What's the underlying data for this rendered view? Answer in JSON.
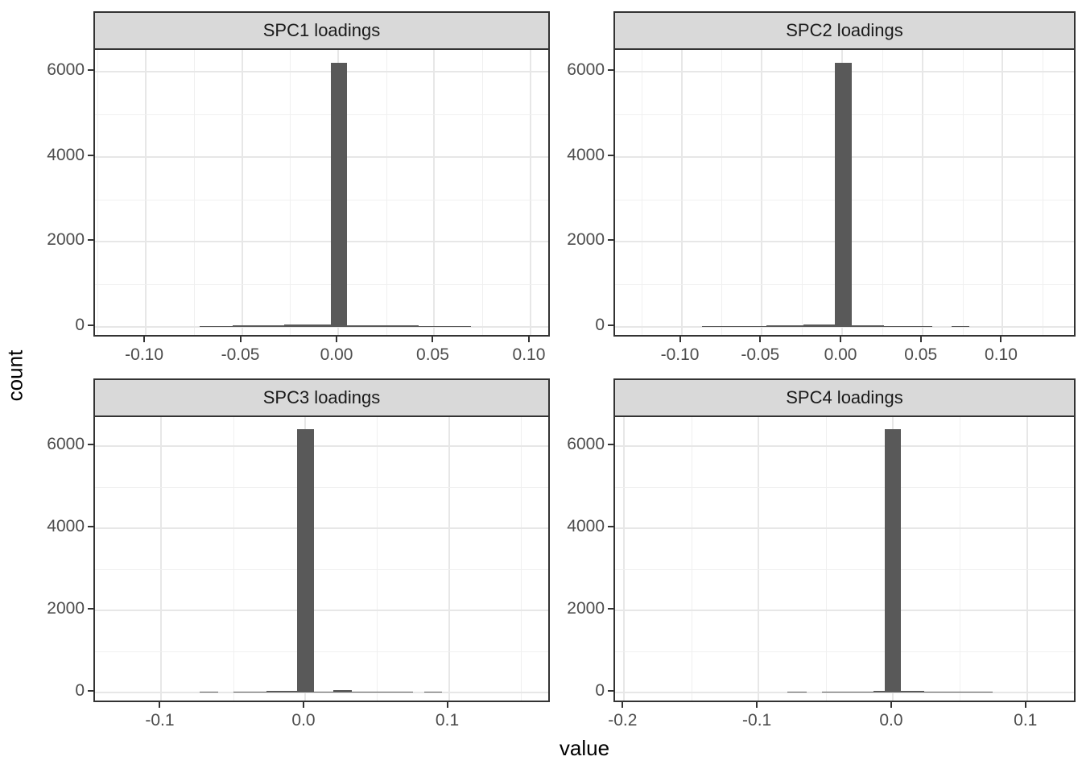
{
  "figure": {
    "xlabel": "value",
    "ylabel": "count",
    "colors": {
      "bar": "#595959",
      "strip_bg": "#d9d9d9",
      "panel_border": "#333333",
      "grid_major": "#e7e7e7",
      "grid_minor": "#f0f0f0",
      "tick_text": "#4d4d4d"
    }
  },
  "chart_data": [
    {
      "type": "bar",
      "title": "SPC1 loadings",
      "xlabel": "value",
      "ylabel": "count",
      "grid": true,
      "legend": false,
      "xlim": [
        -0.1264,
        0.1109
      ],
      "ylim": [
        -272,
        6520
      ],
      "x_breaks": [
        -0.1,
        -0.05,
        0.0,
        0.05,
        0.1
      ],
      "x_labels": [
        "-0.10",
        "-0.05",
        "0.00",
        "0.05",
        "0.10"
      ],
      "y_breaks": [
        0,
        2000,
        4000,
        6000
      ],
      "y_labels": [
        "0",
        "2000",
        "4000",
        "6000"
      ],
      "bars": [
        {
          "from": -0.072,
          "to": -0.055,
          "count": 18
        },
        {
          "from": -0.055,
          "to": -0.028,
          "count": 30
        },
        {
          "from": -0.028,
          "to": -0.0038,
          "count": 55
        },
        {
          "from": -0.0038,
          "to": 0.0046,
          "count": 6220
        },
        {
          "from": 0.0046,
          "to": 0.042,
          "count": 35
        },
        {
          "from": 0.042,
          "to": 0.069,
          "count": 20
        }
      ]
    },
    {
      "type": "bar",
      "title": "SPC2 loadings",
      "xlabel": "value",
      "ylabel": "count",
      "grid": true,
      "legend": false,
      "xlim": [
        -0.1414,
        0.1464
      ],
      "ylim": [
        -272,
        6520
      ],
      "x_breaks": [
        -0.1,
        -0.05,
        0.0,
        0.05,
        0.1
      ],
      "x_labels": [
        "-0.10",
        "-0.05",
        "0.00",
        "0.05",
        "0.10"
      ],
      "y_breaks": [
        0,
        2000,
        4000,
        6000
      ],
      "y_labels": [
        "0",
        "2000",
        "4000",
        "6000"
      ],
      "bars": [
        {
          "from": -0.087,
          "to": -0.047,
          "count": 16
        },
        {
          "from": -0.047,
          "to": -0.024,
          "count": 32
        },
        {
          "from": -0.024,
          "to": -0.0045,
          "count": 50
        },
        {
          "from": -0.0045,
          "to": 0.006,
          "count": 6220
        },
        {
          "from": 0.006,
          "to": 0.026,
          "count": 36
        },
        {
          "from": 0.026,
          "to": 0.056,
          "count": 16
        },
        {
          "from": 0.068,
          "to": 0.079,
          "count": 14
        }
      ]
    },
    {
      "type": "bar",
      "title": "SPC3 loadings",
      "xlabel": "value",
      "ylabel": "count",
      "grid": true,
      "legend": false,
      "xlim": [
        -0.1462,
        0.1714
      ],
      "ylim": [
        -275,
        6700
      ],
      "x_breaks": [
        -0.1,
        0.0,
        0.1
      ],
      "x_labels": [
        "-0.1",
        "0.0",
        "0.1"
      ],
      "y_breaks": [
        0,
        2000,
        4000,
        6000
      ],
      "y_labels": [
        "0",
        "2000",
        "4000",
        "6000"
      ],
      "bars": [
        {
          "from": -0.0734,
          "to": -0.0607,
          "count": 12
        },
        {
          "from": -0.05,
          "to": -0.027,
          "count": 12
        },
        {
          "from": -0.027,
          "to": -0.0056,
          "count": 30
        },
        {
          "from": -0.0056,
          "to": 0.0062,
          "count": 6400
        },
        {
          "from": 0.0062,
          "to": 0.0196,
          "count": 14
        },
        {
          "from": 0.0196,
          "to": 0.0323,
          "count": 55
        },
        {
          "from": 0.0323,
          "to": 0.075,
          "count": 12
        },
        {
          "from": 0.083,
          "to": 0.095,
          "count": 12
        }
      ]
    },
    {
      "type": "bar",
      "title": "SPC4 loadings",
      "xlabel": "value",
      "ylabel": "count",
      "grid": true,
      "legend": false,
      "xlim": [
        -0.2068,
        0.1373
      ],
      "ylim": [
        -275,
        6700
      ],
      "x_breaks": [
        -0.2,
        -0.1,
        0.0,
        0.1
      ],
      "x_labels": [
        "-0.2",
        "-0.1",
        "0.0",
        "0.1"
      ],
      "y_breaks": [
        0,
        2000,
        4000,
        6000
      ],
      "y_labels": [
        "0",
        "2000",
        "4000",
        "6000"
      ],
      "bars": [
        {
          "from": -0.0786,
          "to": -0.0639,
          "count": 10
        },
        {
          "from": -0.0526,
          "to": -0.039,
          "count": 10
        },
        {
          "from": -0.039,
          "to": -0.0141,
          "count": 18
        },
        {
          "from": -0.0141,
          "to": -0.006,
          "count": 30
        },
        {
          "from": -0.006,
          "to": 0.006,
          "count": 6410
        },
        {
          "from": 0.006,
          "to": 0.0233,
          "count": 32
        },
        {
          "from": 0.0233,
          "to": 0.0742,
          "count": 12
        }
      ]
    }
  ]
}
